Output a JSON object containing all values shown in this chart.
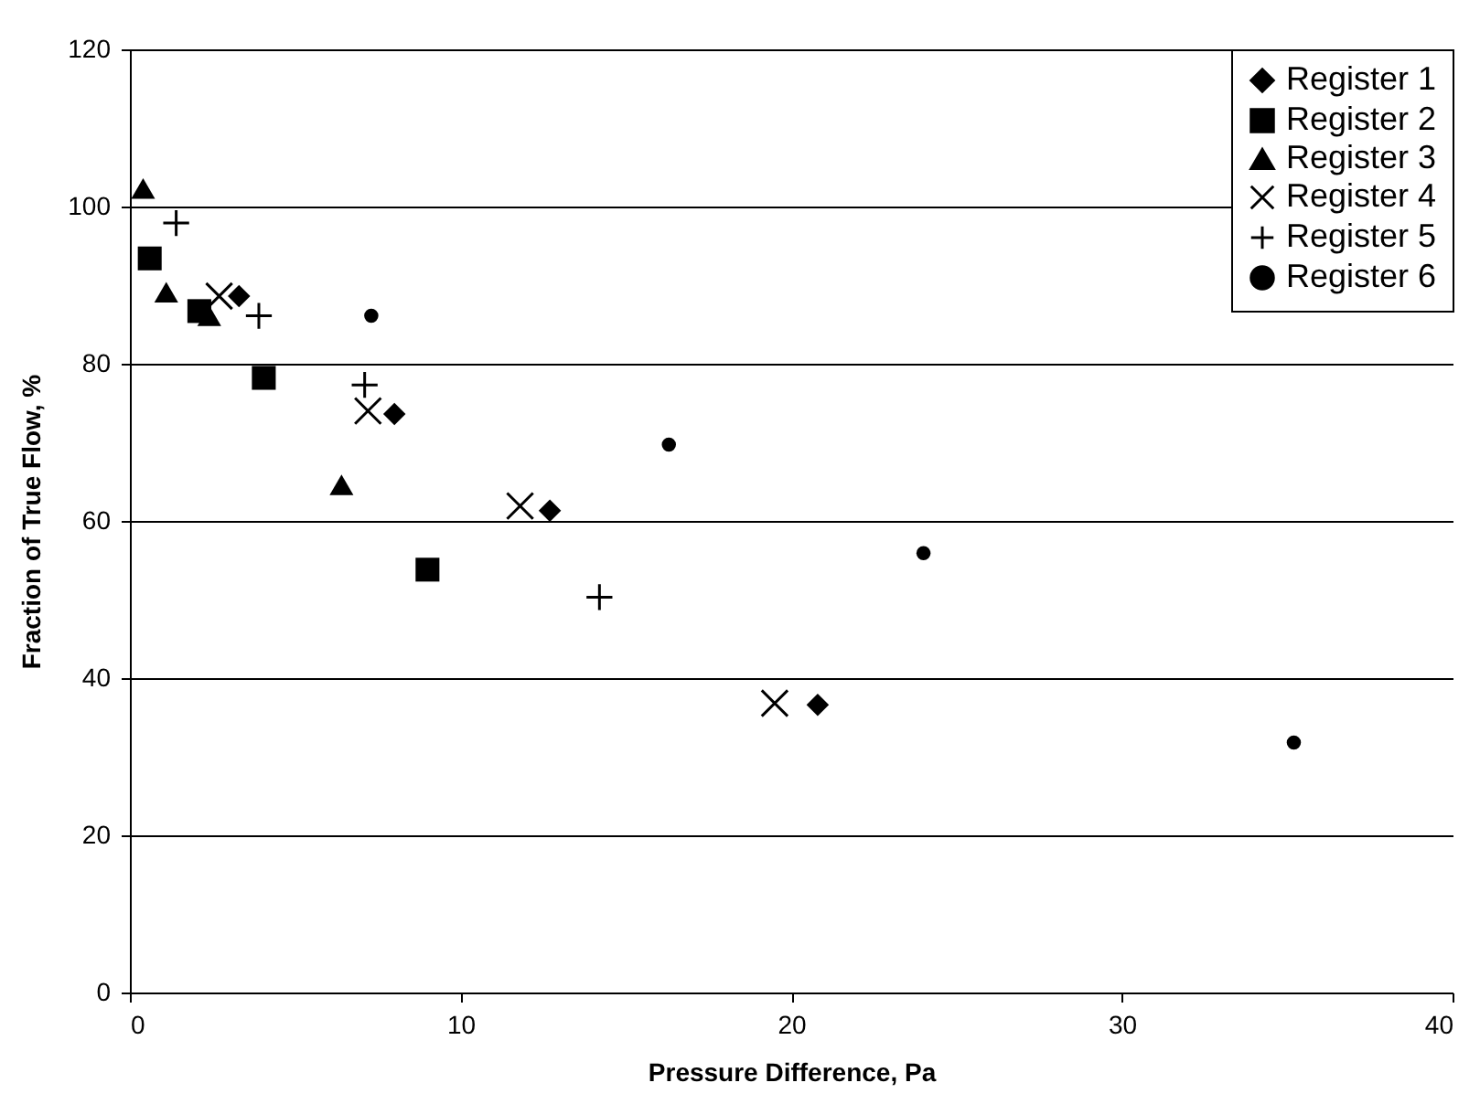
{
  "chart_data": {
    "type": "scatter",
    "xlabel": "Pressure Difference, Pa",
    "ylabel": "Fraction of True Flow, %",
    "xlim": [
      0,
      40
    ],
    "xticks": [
      0,
      10,
      20,
      30,
      40
    ],
    "ylim": [
      0,
      120
    ],
    "yticks": [
      0,
      20,
      40,
      60,
      80,
      100,
      120
    ],
    "grid": "y",
    "legend": "top right",
    "series": [
      {
        "name": "Register 1",
        "color": "#000000",
        "marker": "diamond",
        "x": [
          3.3,
          8.0,
          12.7,
          20.8
        ],
        "values": [
          88.6,
          73.6,
          61.3,
          36.6
        ]
      },
      {
        "name": "Register 2",
        "color": "#000000",
        "marker": "square",
        "x": [
          0.6,
          2.1,
          4.05,
          9.0
        ],
        "values": [
          93.4,
          86.7,
          78.2,
          53.8
        ]
      },
      {
        "name": "Register 3",
        "color": "#000000",
        "marker": "triangle",
        "x": [
          0.4,
          1.1,
          2.4,
          6.4
        ],
        "values": [
          102.3,
          89.1,
          86.1,
          64.6
        ]
      },
      {
        "name": "Register 4",
        "color": "#000000",
        "marker": "x",
        "x": [
          2.7,
          7.2,
          11.8,
          19.5
        ],
        "values": [
          88.6,
          74.0,
          61.9,
          36.8
        ]
      },
      {
        "name": "Register 5",
        "color": "#000000",
        "marker": "cross",
        "x": [
          1.4,
          3.9,
          7.1,
          14.2
        ],
        "values": [
          97.9,
          86.1,
          77.3,
          50.3
        ]
      },
      {
        "name": "Register 6",
        "color": "#000000",
        "marker": "circle",
        "x": [
          7.3,
          16.3,
          24.0,
          35.2
        ],
        "values": [
          86.1,
          69.7,
          55.9,
          31.8
        ]
      }
    ]
  }
}
